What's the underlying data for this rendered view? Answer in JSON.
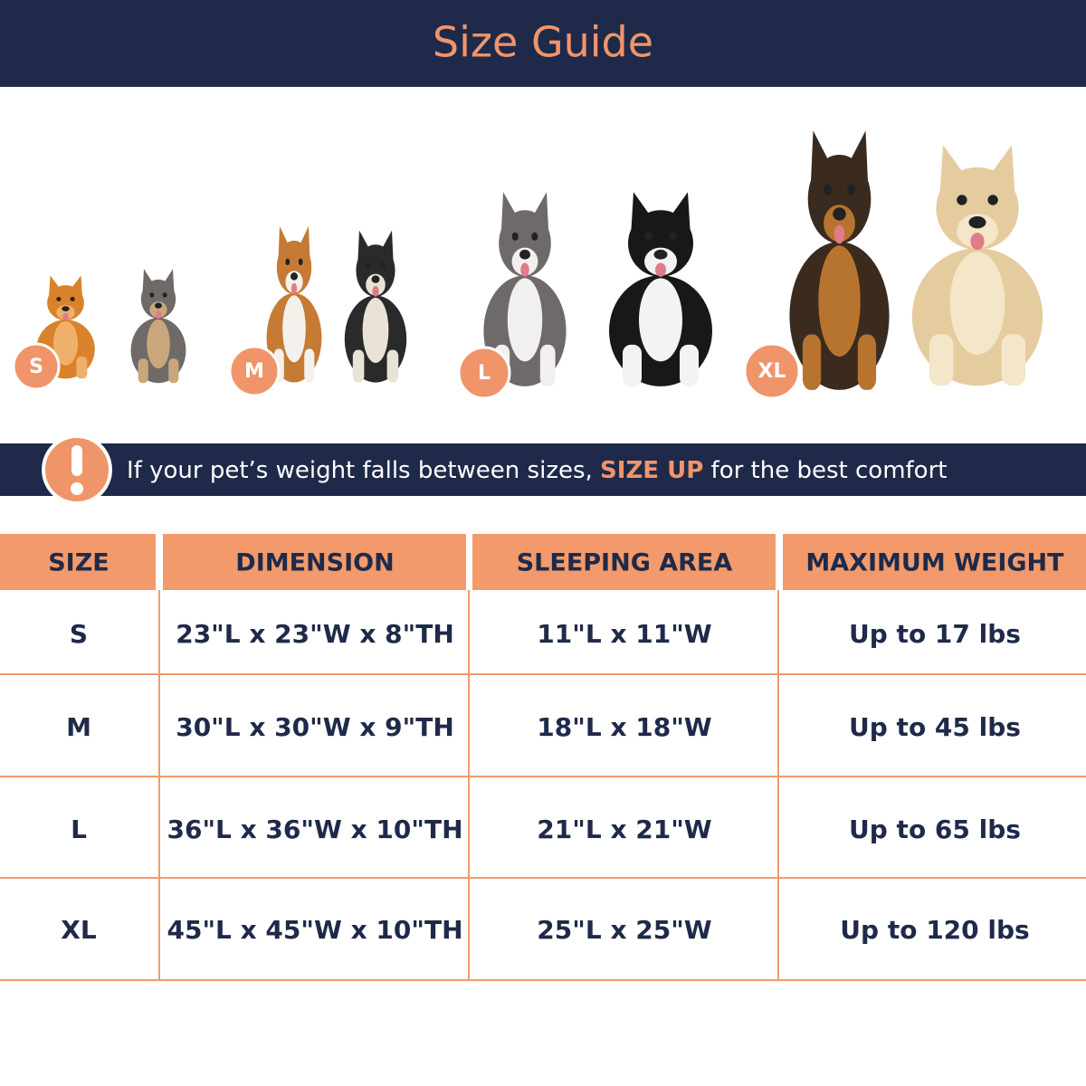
{
  "header": {
    "title": "Size Guide"
  },
  "badges": [
    "S",
    "M",
    "L",
    "XL"
  ],
  "notice": {
    "before": "If your pet’s weight falls between sizes, ",
    "highlight": "SIZE UP",
    "after": " for the best comfort"
  },
  "table": {
    "headers": [
      "SIZE",
      "DIMENSION",
      "SLEEPING AREA",
      "MAXIMUM WEIGHT"
    ],
    "rows": [
      [
        "S",
        "23\"L x 23\"W x 8\"TH",
        "11\"L x 11\"W",
        "Up to 17 lbs"
      ],
      [
        "M",
        "30\"L x 30\"W x 9\"TH",
        "18\"L x 18\"W",
        "Up to 45 lbs"
      ],
      [
        "L",
        "36\"L x 36\"W x 10\"TH",
        "21\"L x 21\"W",
        "Up to 65 lbs"
      ],
      [
        "XL",
        "45\"L x 45\"W x 10\"TH",
        "25\"L x 25\"W",
        "Up to 120 lbs"
      ]
    ]
  }
}
